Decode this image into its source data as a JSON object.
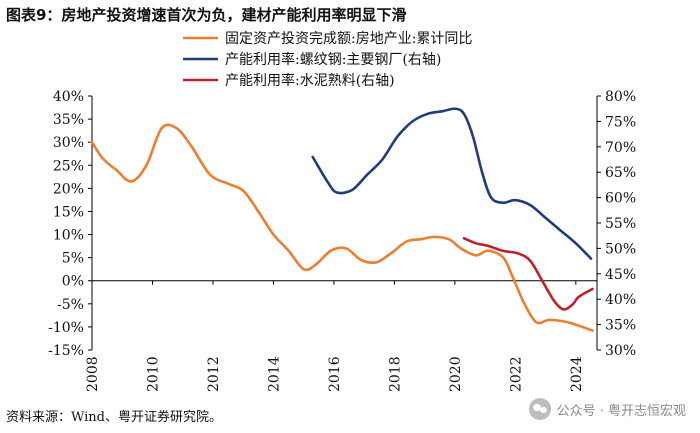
{
  "header": {
    "title": "图表9：房地产投资增速首次为负，建材产能利用率明显下滑"
  },
  "footer": {
    "source": "资料来源：Wind、粤开证券研究院。",
    "watermark": "公众号 · 粤开志恒宏观",
    "watermark_icon": "wechat-icon"
  },
  "chart_data": {
    "type": "line",
    "x_range": [
      2008,
      2024.7
    ],
    "x_ticks": [
      2008,
      2010,
      2012,
      2014,
      2016,
      2018,
      2020,
      2022,
      2024
    ],
    "x_tick_labels": [
      "2008",
      "2010",
      "2012",
      "2014",
      "2016",
      "2018",
      "2020",
      "2022",
      "2024"
    ],
    "y_left": {
      "min": -15,
      "max": 40,
      "ticks": [
        40,
        35,
        30,
        25,
        20,
        15,
        10,
        5,
        0,
        -5,
        -10,
        -15
      ],
      "tick_labels": [
        "40%",
        "35%",
        "30%",
        "25%",
        "20%",
        "15%",
        "10%",
        "5%",
        "0%",
        "-5%",
        "-10%",
        "-15%"
      ]
    },
    "y_right": {
      "min": 30,
      "max": 80,
      "ticks": [
        80,
        75,
        70,
        65,
        60,
        55,
        50,
        45,
        40,
        35,
        30
      ],
      "tick_labels": [
        "80%",
        "75%",
        "70%",
        "65%",
        "60%",
        "55%",
        "50%",
        "45%",
        "40%",
        "35%",
        "30%"
      ]
    },
    "series": [
      {
        "name": "固定资产投资完成额:房地产业:累计同比",
        "axis": "left",
        "color": "#ED7D31",
        "x": [
          2008,
          2008.35,
          2008.8,
          2009.3,
          2009.8,
          2010.3,
          2010.8,
          2011.3,
          2011.9,
          2012.5,
          2013.0,
          2013.5,
          2014.0,
          2014.5,
          2015.0,
          2015.4,
          2015.9,
          2016.4,
          2016.9,
          2017.4,
          2017.9,
          2018.4,
          2018.9,
          2019.3,
          2019.8,
          2020.2,
          2020.7,
          2021.1,
          2021.6,
          2021.9,
          2022.3,
          2022.7,
          2023.1,
          2023.6,
          2024.0,
          2024.55
        ],
        "values": [
          30,
          26.5,
          24,
          21.5,
          25,
          33,
          33,
          29,
          23,
          21,
          19.5,
          15,
          10,
          6.5,
          2.5,
          3.5,
          6.5,
          7,
          4.5,
          4,
          6,
          8.5,
          9,
          9.5,
          9,
          7,
          5.5,
          6.5,
          5,
          1,
          -5,
          -9,
          -8.5,
          -8.8,
          -9.5,
          -10.8
        ]
      },
      {
        "name": "产能利用率:螺纹钢:主要钢厂(右轴)",
        "axis": "right",
        "color": "#1F3D7A",
        "x": [
          2015.3,
          2015.8,
          2016.1,
          2016.6,
          2017.1,
          2017.6,
          2018.1,
          2018.6,
          2019.1,
          2019.6,
          2020.0,
          2020.3,
          2020.6,
          2020.9,
          2021.2,
          2021.6,
          2022.0,
          2022.5,
          2023.0,
          2023.5,
          2024.0,
          2024.5
        ],
        "values": [
          68,
          63,
          61,
          61.5,
          64.5,
          67.5,
          72,
          75,
          76.5,
          77,
          77.5,
          76.5,
          72,
          65,
          60,
          59,
          59.5,
          58.5,
          56,
          53.5,
          51,
          48
        ]
      },
      {
        "name": "产能利用率:水泥熟料(右轴)",
        "axis": "right",
        "color": "#C0202A",
        "x": [
          2020.3,
          2020.7,
          2021.1,
          2021.6,
          2022.1,
          2022.5,
          2022.9,
          2023.3,
          2023.6,
          2023.9,
          2024.1,
          2024.55
        ],
        "values": [
          52,
          51,
          50.5,
          49.5,
          49,
          47.5,
          43.5,
          39.5,
          38,
          39,
          40.5,
          42
        ]
      }
    ]
  }
}
